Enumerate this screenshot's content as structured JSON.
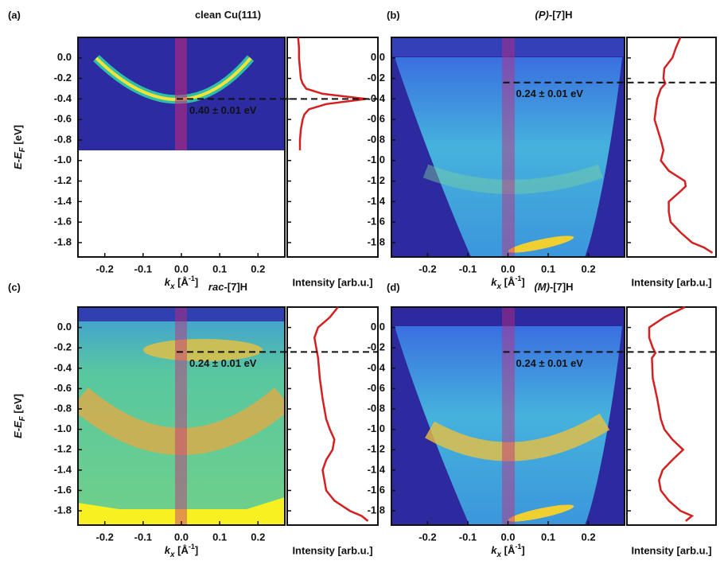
{
  "chart_data": [
    {
      "type": "arpes",
      "panel_label": "(a)",
      "title": "clean Cu(111)",
      "y_label": {
        "main": "E-E",
        "sub": "F",
        "unit": " [eV]"
      },
      "x_label": {
        "main": "k",
        "sub": "x",
        "unit": " [Å",
        "sup": "-1",
        "close": "]"
      },
      "xlim": [
        -0.27,
        0.27
      ],
      "xticks": [
        -0.2,
        -0.1,
        {
          "value": 0,
          "label": "0.0"
        },
        0.1,
        0.2
      ],
      "ylim": [
        -1.94,
        0.2
      ],
      "yticks": [
        {
          "value": 0,
          "label": "0.0"
        },
        -0.2,
        -0.4,
        -0.6,
        -0.8,
        {
          "value": -1,
          "label": "-1.0"
        },
        -1.2,
        -1.4,
        -1.6,
        -1.8
      ],
      "annotation": {
        "text": "0.40 ± 0.01 eV",
        "energy": -0.4
      },
      "profile": {
        "x_label": "Intensity [arb.u.]",
        "color": "#d42020",
        "xlim": [
          0,
          1
        ],
        "energies": [
          0.2,
          0.1,
          0.0,
          -0.1,
          -0.2,
          -0.25,
          -0.3,
          -0.35,
          -0.4,
          -0.45,
          -0.5,
          -0.55,
          -0.6,
          -0.7,
          -0.8,
          -0.9
        ],
        "values": [
          0.12,
          0.13,
          0.13,
          0.14,
          0.15,
          0.17,
          0.21,
          0.39,
          0.87,
          0.43,
          0.24,
          0.19,
          0.17,
          0.15,
          0.14,
          0.14
        ]
      }
    },
    {
      "type": "arpes",
      "panel_label": "(b)",
      "title_italic": "(P)",
      "title": "-[7]H",
      "x_label": {
        "main": "k",
        "sub": "x",
        "unit": " [Å",
        "sup": "-1",
        "close": "]"
      },
      "xlim": [
        -0.29,
        0.29
      ],
      "xticks": [
        -0.2,
        -0.1,
        {
          "value": 0,
          "label": "0.0"
        },
        0.1,
        0.2
      ],
      "ylim": [
        -1.94,
        0.2
      ],
      "yticks": [
        {
          "value": 0,
          "label": "0.0"
        },
        -0.2,
        -0.4,
        -0.6,
        -0.8,
        {
          "value": -1,
          "label": "-1.0"
        },
        -1.2,
        -1.4,
        -1.6,
        -1.8
      ],
      "annotation": {
        "text": "0.24 ± 0.01 eV",
        "energy": -0.24
      },
      "profile": {
        "x_label": "Intensity [arb.u.]",
        "color": "#d42020",
        "xlim": [
          0,
          1
        ],
        "energies": [
          0.2,
          0.1,
          0.0,
          -0.1,
          -0.2,
          -0.25,
          -0.3,
          -0.4,
          -0.6,
          -0.8,
          -0.9,
          -1.0,
          -1.1,
          -1.2,
          -1.25,
          -1.3,
          -1.4,
          -1.5,
          -1.6,
          -1.7,
          -1.8,
          -1.85,
          -1.9
        ],
        "values": [
          0.6,
          0.55,
          0.51,
          0.42,
          0.41,
          0.43,
          0.38,
          0.34,
          0.31,
          0.38,
          0.41,
          0.38,
          0.47,
          0.65,
          0.66,
          0.6,
          0.47,
          0.47,
          0.49,
          0.6,
          0.73,
          0.87,
          0.96
        ]
      }
    },
    {
      "type": "arpes",
      "panel_label": "(c)",
      "title_italic": "rac",
      "title": "-[7]H",
      "y_label": {
        "main": "E-E",
        "sub": "F",
        "unit": " [eV]"
      },
      "x_label": {
        "main": "k",
        "sub": "x",
        "unit": " [Å",
        "sup": "-1",
        "close": "]"
      },
      "xlim": [
        -0.27,
        0.27
      ],
      "xticks": [
        -0.2,
        -0.1,
        {
          "value": 0,
          "label": "0.0"
        },
        0.1,
        0.2
      ],
      "ylim": [
        -1.94,
        0.2
      ],
      "yticks": [
        {
          "value": 0,
          "label": "0.0"
        },
        -0.2,
        -0.4,
        -0.6,
        -0.8,
        {
          "value": -1,
          "label": "-1.0"
        },
        -1.2,
        -1.4,
        -1.6,
        -1.8
      ],
      "annotation": {
        "text": "0.24 ± 0.01 eV",
        "energy": -0.24
      },
      "profile": {
        "x_label": "Intensity [arb.u.]",
        "color": "#d42020",
        "xlim": [
          0,
          1
        ],
        "energies": [
          0.2,
          0.1,
          0.0,
          -0.1,
          -0.2,
          -0.3,
          -0.5,
          -0.7,
          -0.9,
          -1.0,
          -1.1,
          -1.2,
          -1.3,
          -1.4,
          -1.6,
          -1.7,
          -1.8,
          -1.85,
          -1.9
        ],
        "values": [
          0.56,
          0.47,
          0.34,
          0.3,
          0.32,
          0.34,
          0.36,
          0.39,
          0.43,
          0.47,
          0.52,
          0.5,
          0.43,
          0.39,
          0.43,
          0.52,
          0.69,
          0.82,
          0.89
        ]
      }
    },
    {
      "type": "arpes",
      "panel_label": "(d)",
      "title_italic": "(M)",
      "title": "-[7]H",
      "x_label": {
        "main": "k",
        "sub": "x",
        "unit": " [Å",
        "sup": "-1",
        "close": "]"
      },
      "xlim": [
        -0.29,
        0.29
      ],
      "xticks": [
        -0.2,
        -0.1,
        {
          "value": 0,
          "label": "0.0"
        },
        0.1,
        0.2
      ],
      "ylim": [
        -1.94,
        0.2
      ],
      "yticks": [
        {
          "value": 0,
          "label": "0.0"
        },
        -0.2,
        -0.4,
        -0.6,
        -0.8,
        {
          "value": -1,
          "label": "-1.0"
        },
        -1.2,
        -1.4,
        -1.6,
        -1.8
      ],
      "annotation": {
        "text": "0.24 ± 0.01 eV",
        "energy": -0.24
      },
      "profile": {
        "x_label": "Intensity [arb.u.]",
        "color": "#d42020",
        "xlim": [
          0,
          1
        ],
        "energies": [
          0.2,
          0.1,
          0.0,
          -0.1,
          -0.2,
          -0.25,
          -0.3,
          -0.5,
          -0.7,
          -0.9,
          -1.0,
          -1.1,
          -1.2,
          -1.3,
          -1.4,
          -1.5,
          -1.6,
          -1.7,
          -1.8,
          -1.85,
          -1.9
        ],
        "values": [
          0.65,
          0.42,
          0.25,
          0.25,
          0.29,
          0.32,
          0.28,
          0.29,
          0.34,
          0.38,
          0.42,
          0.51,
          0.63,
          0.51,
          0.4,
          0.36,
          0.38,
          0.47,
          0.6,
          0.73,
          0.66
        ]
      }
    }
  ]
}
